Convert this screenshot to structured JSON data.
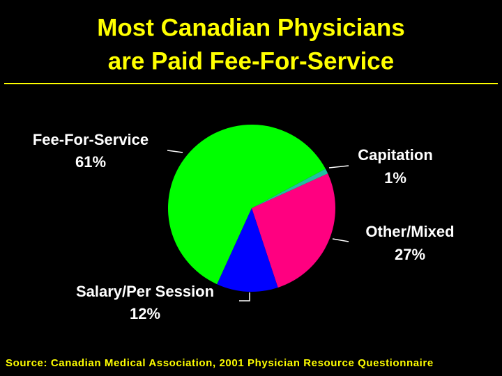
{
  "chart_data": {
    "type": "pie",
    "title": [
      "Most Canadian Physicians",
      "are Paid Fee-For-Service"
    ],
    "categories": [
      "Fee-For-Service",
      "Capitation",
      "Other/Mixed",
      "Salary/Per Session"
    ],
    "values": [
      61,
      1,
      27,
      12
    ],
    "value_labels": [
      "61%",
      "1%",
      "27%",
      "12%"
    ],
    "colors": [
      "#00ff00",
      "#20c0a0",
      "#ff0080",
      "#0000ff"
    ],
    "source": "Source: Canadian Medical Association, 2001 Physician Resource Questionnaire"
  }
}
